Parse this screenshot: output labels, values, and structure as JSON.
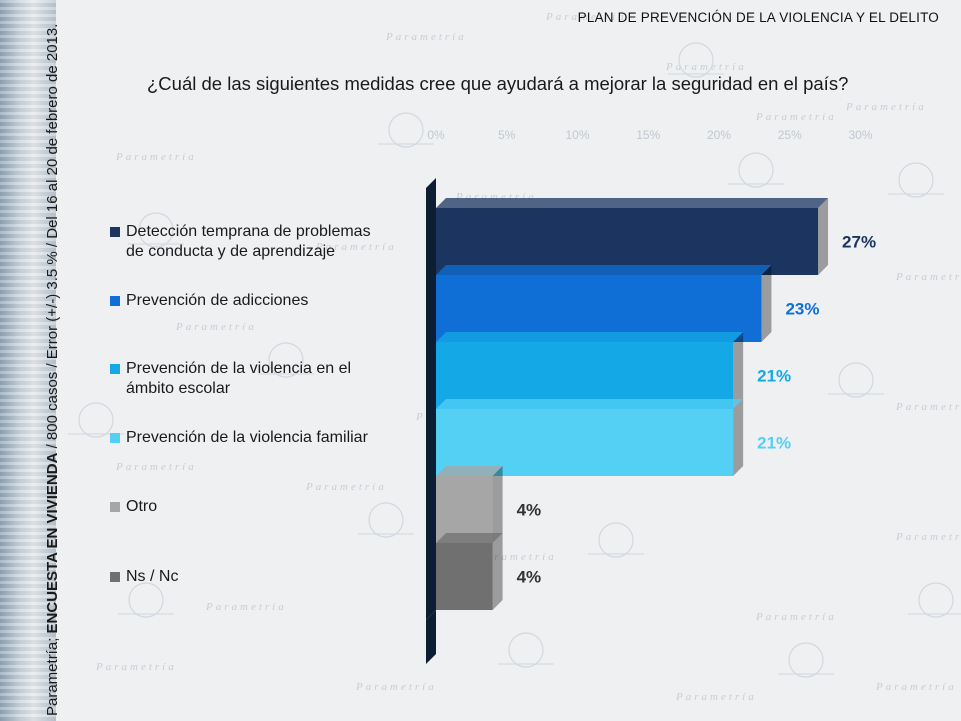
{
  "header": {
    "title": "PLAN DE PREVENCIÓN DE LA VIOLENCIA Y EL DELITO"
  },
  "side_note": {
    "source": "Parametría;",
    "bold": "ENCUESTA EN VIVIENDA",
    "rest": "/ 800 casos / Error (+/-) 3.5 % / Del 16 al 20 de febrero de 2013."
  },
  "watermark_word": "Parametría",
  "chart_data": {
    "type": "bar",
    "orientation": "horizontal",
    "title": "¿Cuál de las siguientes medidas cree que ayudará a mejorar la seguridad en el país?",
    "categories": [
      "Detección temprana de problemas de conducta y de aprendizaje",
      "Prevención de adicciones",
      "Prevención de la violencia en el ámbito escolar",
      "Prevención de la violencia familiar",
      "Otro",
      "Ns / Nc"
    ],
    "legend_lines": [
      [
        "Detección temprana de problemas",
        "de conducta y de aprendizaje"
      ],
      [
        "Prevención de adicciones"
      ],
      [
        "Prevención de la violencia en el",
        "ámbito escolar"
      ],
      [
        "Prevención de la violencia familiar"
      ],
      [
        "Otro"
      ],
      [
        "Ns / Nc"
      ]
    ],
    "values": [
      27,
      23,
      21,
      21,
      4,
      4
    ],
    "value_labels": [
      "27%",
      "23%",
      "21%",
      "21%",
      "4%",
      "4%"
    ],
    "colors": [
      "#1b3560",
      "#0f6fd6",
      "#14a9e6",
      "#54d0f5",
      "#a6a6a6",
      "#707070"
    ],
    "label_colors": [
      "#1b3560",
      "#0f6fd6",
      "#14a9e6",
      "#54d0f5",
      "#333333",
      "#333333"
    ],
    "axis_tick_labels": [
      "0%",
      "5%",
      "10%",
      "15%",
      "20%",
      "25%",
      "30%"
    ],
    "xlim": [
      0,
      30
    ],
    "legend": "left"
  }
}
